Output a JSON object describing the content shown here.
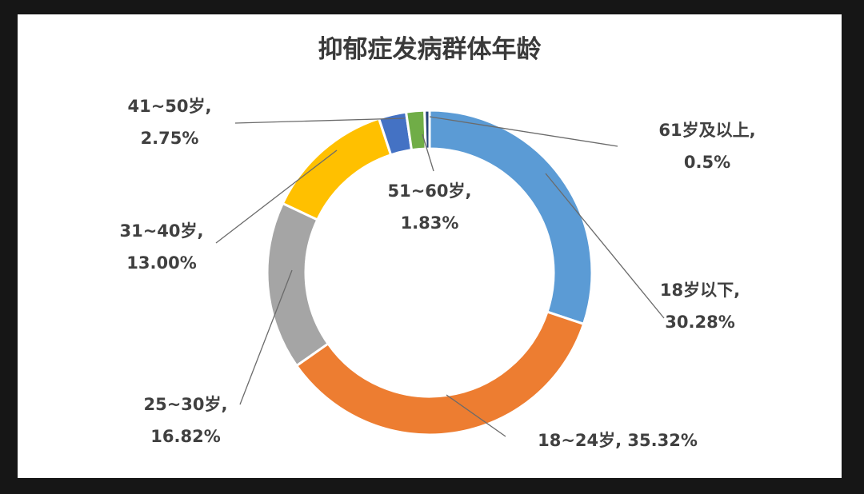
{
  "chart_data": {
    "type": "donut",
    "title": "抑郁症发病群体年龄",
    "slices": [
      {
        "key": "s1",
        "name": "18岁以下",
        "value": 30.28,
        "color": "#5B9BD5",
        "label_lines": [
          "18岁以下,",
          "30.28%"
        ]
      },
      {
        "key": "s2",
        "name": "18~24岁",
        "value": 35.32,
        "color": "#ED7D31",
        "label_lines": [
          "18~24岁, 35.32%"
        ]
      },
      {
        "key": "s3",
        "name": "25~30岁",
        "value": 16.82,
        "color": "#A5A5A5",
        "label_lines": [
          "25~30岁,",
          "16.82%"
        ]
      },
      {
        "key": "s4",
        "name": "31~40岁",
        "value": 13.0,
        "color": "#FFC000",
        "label_lines": [
          "31~40岁,",
          "13.00%"
        ]
      },
      {
        "key": "s5",
        "name": "41~50岁",
        "value": 2.75,
        "color": "#4472C4",
        "label_lines": [
          "41~50岁,",
          "2.75%"
        ]
      },
      {
        "key": "s6",
        "name": "51~60岁",
        "value": 1.83,
        "color": "#70AD47",
        "label_lines": [
          "51~60岁,",
          "1.83%"
        ]
      },
      {
        "key": "s7",
        "name": "61岁及以上",
        "value": 0.5,
        "color": "#264478",
        "label_lines": [
          "61岁及以上,",
          "0.5%"
        ]
      }
    ]
  }
}
